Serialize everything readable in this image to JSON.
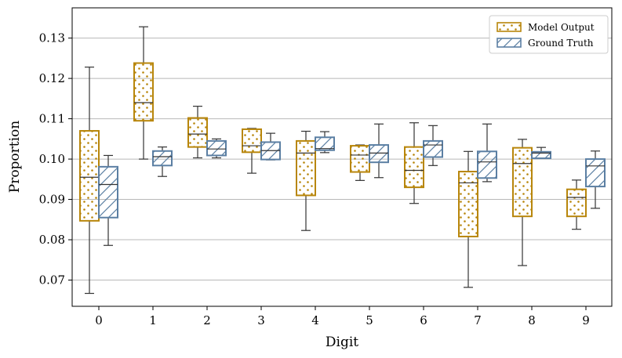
{
  "chart_data": {
    "type": "boxplot",
    "xlabel": "Digit",
    "ylabel": "Proportion",
    "categories": [
      "0",
      "1",
      "2",
      "3",
      "4",
      "5",
      "6",
      "7",
      "8",
      "9"
    ],
    "ylim": [
      0.0635,
      0.1375
    ],
    "yticks": [
      0.07,
      0.08,
      0.09,
      0.1,
      0.11,
      0.12,
      0.13
    ],
    "ytick_labels": [
      "0.07",
      "0.08",
      "0.09",
      "0.10",
      "0.11",
      "0.12",
      "0.13"
    ],
    "grid": "horizontal",
    "legend_position": "top-right",
    "series": [
      {
        "name": "Model Output",
        "color": "#b8860b",
        "pattern": "dots",
        "boxes": [
          {
            "min": 0.0667,
            "q1": 0.0847,
            "median": 0.0955,
            "q3": 0.107,
            "max": 0.1228
          },
          {
            "min": 0.1,
            "q1": 0.1095,
            "median": 0.114,
            "q3": 0.1238,
            "max": 0.1328
          },
          {
            "min": 0.1003,
            "q1": 0.103,
            "median": 0.1062,
            "q3": 0.1102,
            "max": 0.1131
          },
          {
            "min": 0.0965,
            "q1": 0.1017,
            "median": 0.1033,
            "q3": 0.1074,
            "max": 0.1076
          },
          {
            "min": 0.0823,
            "q1": 0.091,
            "median": 0.1015,
            "q3": 0.1045,
            "max": 0.1069
          },
          {
            "min": 0.0947,
            "q1": 0.0968,
            "median": 0.101,
            "q3": 0.1033,
            "max": 0.1035
          },
          {
            "min": 0.089,
            "q1": 0.093,
            "median": 0.0972,
            "q3": 0.103,
            "max": 0.109
          },
          {
            "min": 0.0682,
            "q1": 0.0808,
            "median": 0.0941,
            "q3": 0.0969,
            "max": 0.1019
          },
          {
            "min": 0.0736,
            "q1": 0.0858,
            "median": 0.0989,
            "q3": 0.1028,
            "max": 0.1049
          },
          {
            "min": 0.0826,
            "q1": 0.0858,
            "median": 0.0905,
            "q3": 0.0925,
            "max": 0.0948
          }
        ]
      },
      {
        "name": "Ground Truth",
        "color": "#5b7fa3",
        "pattern": "hatch",
        "boxes": [
          {
            "min": 0.0786,
            "q1": 0.0855,
            "median": 0.0937,
            "q3": 0.0981,
            "max": 0.1009
          },
          {
            "min": 0.0957,
            "q1": 0.0984,
            "median": 0.1006,
            "q3": 0.102,
            "max": 0.103
          },
          {
            "min": 0.1003,
            "q1": 0.1009,
            "median": 0.1025,
            "q3": 0.1045,
            "max": 0.105
          },
          {
            "min": 0.0998,
            "q1": 0.0999,
            "median": 0.1021,
            "q3": 0.1042,
            "max": 0.1064
          },
          {
            "min": 0.1016,
            "q1": 0.1022,
            "median": 0.1026,
            "q3": 0.1054,
            "max": 0.1068
          },
          {
            "min": 0.0954,
            "q1": 0.0992,
            "median": 0.1015,
            "q3": 0.1035,
            "max": 0.1087
          },
          {
            "min": 0.0984,
            "q1": 0.1005,
            "median": 0.1035,
            "q3": 0.1045,
            "max": 0.1083
          },
          {
            "min": 0.0944,
            "q1": 0.0953,
            "median": 0.0993,
            "q3": 0.1019,
            "max": 0.1087
          },
          {
            "min": 0.1002,
            "q1": 0.1002,
            "median": 0.1015,
            "q3": 0.1018,
            "max": 0.1029
          },
          {
            "min": 0.0878,
            "q1": 0.0932,
            "median": 0.0983,
            "q3": 0.1,
            "max": 0.102
          }
        ]
      }
    ]
  }
}
